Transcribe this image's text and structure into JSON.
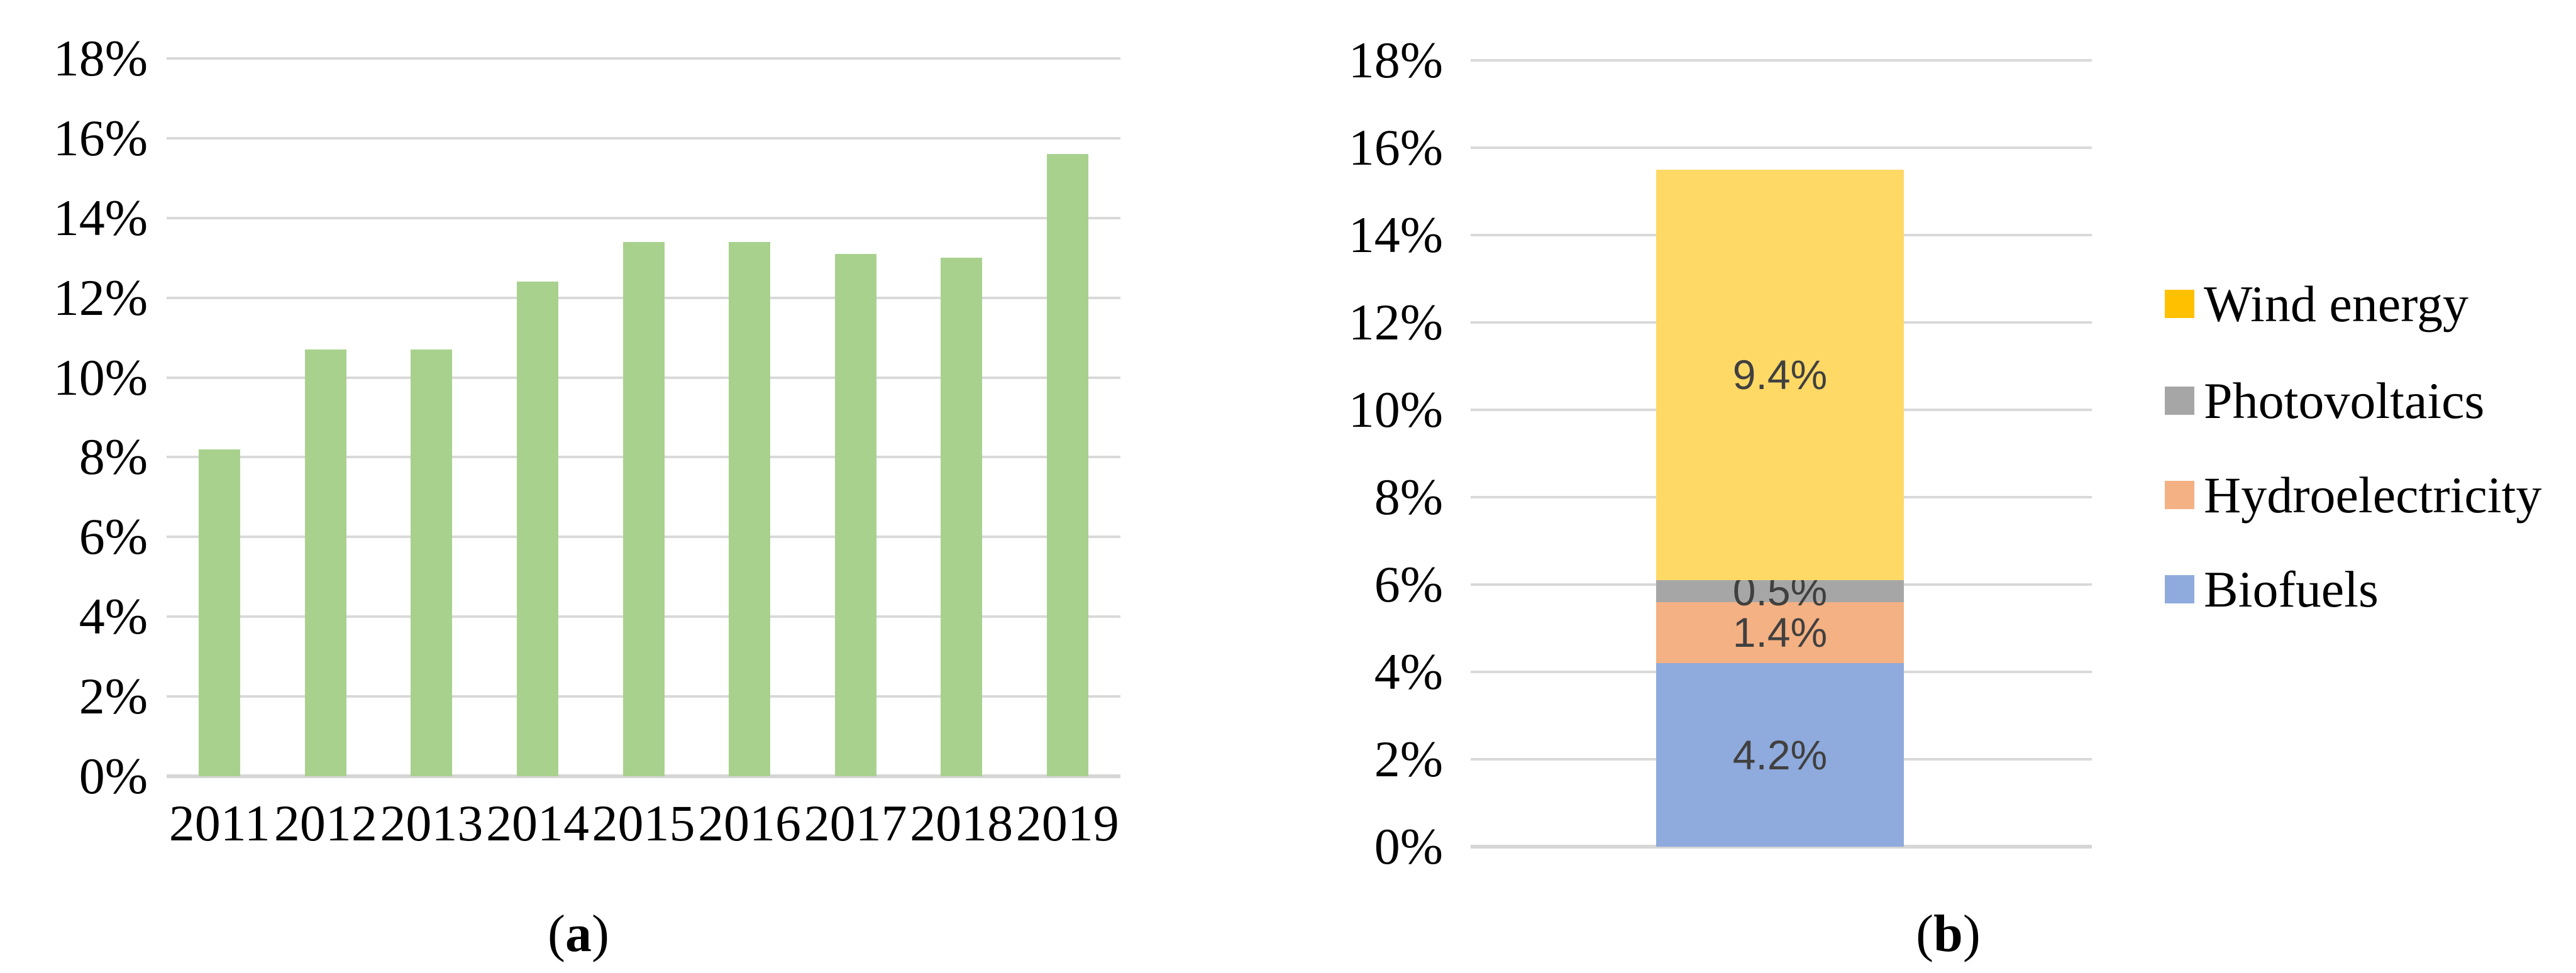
{
  "captions": {
    "a": {
      "prefix": "(",
      "letter": "a",
      "suffix": ")"
    },
    "b": {
      "prefix": "(",
      "letter": "b",
      "suffix": ")"
    }
  },
  "chart_data": [
    {
      "type": "bar",
      "title": "",
      "xlabel": "",
      "ylabel": "",
      "categories": [
        "2011",
        "2012",
        "2013",
        "2014",
        "2015",
        "2016",
        "2017",
        "2018",
        "2019"
      ],
      "values": [
        8.2,
        10.7,
        10.7,
        12.4,
        13.4,
        13.4,
        13.1,
        13.0,
        15.6
      ],
      "unit": "%",
      "ylim": [
        0,
        18
      ],
      "ytick_step": 2,
      "yticks": [
        "18%",
        "16%",
        "14%",
        "12%",
        "10%",
        "8%",
        "6%",
        "4%",
        "2%",
        "0%"
      ],
      "grid": true,
      "legend_position": "none",
      "bar_color": "#A9D18E",
      "gridline_color": "#D9D9D9",
      "axisline_color": "#D6D6D6",
      "tick_color": "#000000"
    },
    {
      "type": "stacked-bar",
      "title": "",
      "xlabel": "",
      "ylabel": "",
      "categories": [
        ""
      ],
      "ylim": [
        0,
        18
      ],
      "ytick_step": 2,
      "yticks": [
        "18%",
        "16%",
        "14%",
        "12%",
        "10%",
        "8%",
        "6%",
        "4%",
        "2%",
        "0%"
      ],
      "grid": true,
      "segments": [
        {
          "name": "Biofuels",
          "value": 4.2,
          "label": "4.2%",
          "color": "#8FAADC"
        },
        {
          "name": "Hydroelectricity",
          "value": 1.4,
          "label": "1.4%",
          "color": "#F4B183"
        },
        {
          "name": "Photovoltaics",
          "value": 0.5,
          "label": "0.5%",
          "color": "#A6A6A6"
        },
        {
          "name": "Wind energy",
          "value": 9.4,
          "label": "9.4%",
          "color": "#FFD966"
        }
      ],
      "data_label_color": "#404040",
      "legend_position": "right",
      "legend": {
        "items": [
          {
            "label": "Wind energy",
            "swatch": "#FFC000"
          },
          {
            "label": "Photovoltaics",
            "swatch": "#A6A6A6"
          },
          {
            "label": "Hydroelectricity",
            "swatch": "#F4B183"
          },
          {
            "label": "Biofuels",
            "swatch": "#8FAADC"
          }
        ]
      },
      "gridline_color": "#D9D9D9",
      "axisline_color": "#D6D6D6",
      "tick_color": "#000000"
    }
  ]
}
